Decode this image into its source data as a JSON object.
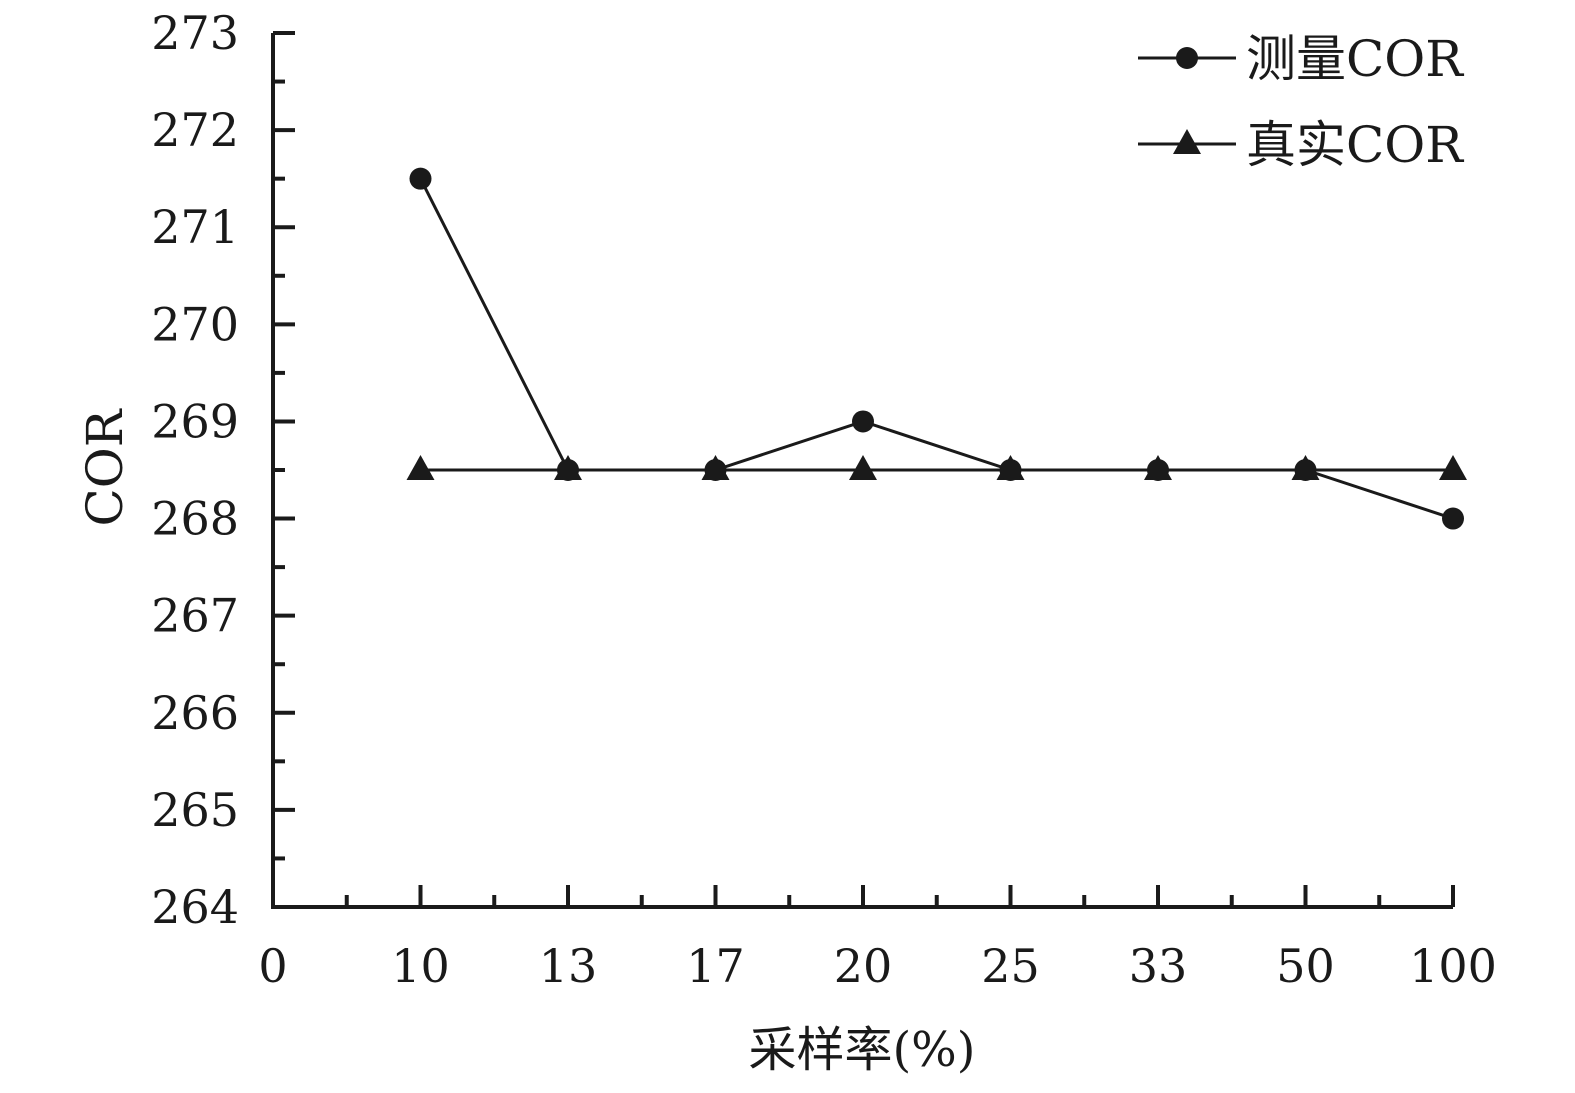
{
  "chart_data": {
    "type": "line",
    "categories": [
      "0",
      "10",
      "13",
      "17",
      "20",
      "25",
      "33",
      "50",
      "100"
    ],
    "xlabel": "采样率(%)",
    "ylabel": "COR",
    "ylim": [
      264,
      273
    ],
    "yticks": [
      "264",
      "265",
      "266",
      "267",
      "268",
      "269",
      "270",
      "271",
      "272",
      "273"
    ],
    "grid": false,
    "legend_position": "top-right",
    "series": [
      {
        "name": "测量COR",
        "marker": "circle",
        "color": "#1a1a1a",
        "points": [
          {
            "x": "10",
            "y": 271.5
          },
          {
            "x": "13",
            "y": 268.5
          },
          {
            "x": "17",
            "y": 268.5
          },
          {
            "x": "20",
            "y": 269.0
          },
          {
            "x": "25",
            "y": 268.5
          },
          {
            "x": "33",
            "y": 268.5
          },
          {
            "x": "50",
            "y": 268.5
          },
          {
            "x": "100",
            "y": 268.0
          }
        ]
      },
      {
        "name": "真实COR",
        "marker": "triangle",
        "color": "#1a1a1a",
        "points": [
          {
            "x": "10",
            "y": 268.5
          },
          {
            "x": "13",
            "y": 268.5
          },
          {
            "x": "17",
            "y": 268.5
          },
          {
            "x": "20",
            "y": 268.5
          },
          {
            "x": "25",
            "y": 268.5
          },
          {
            "x": "33",
            "y": 268.5
          },
          {
            "x": "50",
            "y": 268.5
          },
          {
            "x": "100",
            "y": 268.5
          }
        ]
      }
    ]
  }
}
